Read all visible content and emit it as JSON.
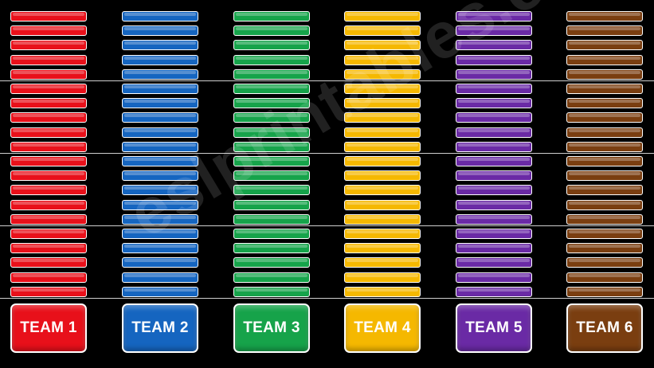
{
  "board": {
    "bars_per_team": 20,
    "group_size": 5,
    "teams": [
      {
        "label": "TEAM 1",
        "color": "#e8101a"
      },
      {
        "label": "TEAM 2",
        "color": "#1565c0"
      },
      {
        "label": "TEAM 3",
        "color": "#16a34a"
      },
      {
        "label": "TEAM 4",
        "color": "#f5b800"
      },
      {
        "label": "TEAM 5",
        "color": "#6a2aa5"
      },
      {
        "label": "TEAM 6",
        "color": "#7a3e10"
      }
    ]
  },
  "watermark": {
    "text": "eslprintables.com"
  }
}
